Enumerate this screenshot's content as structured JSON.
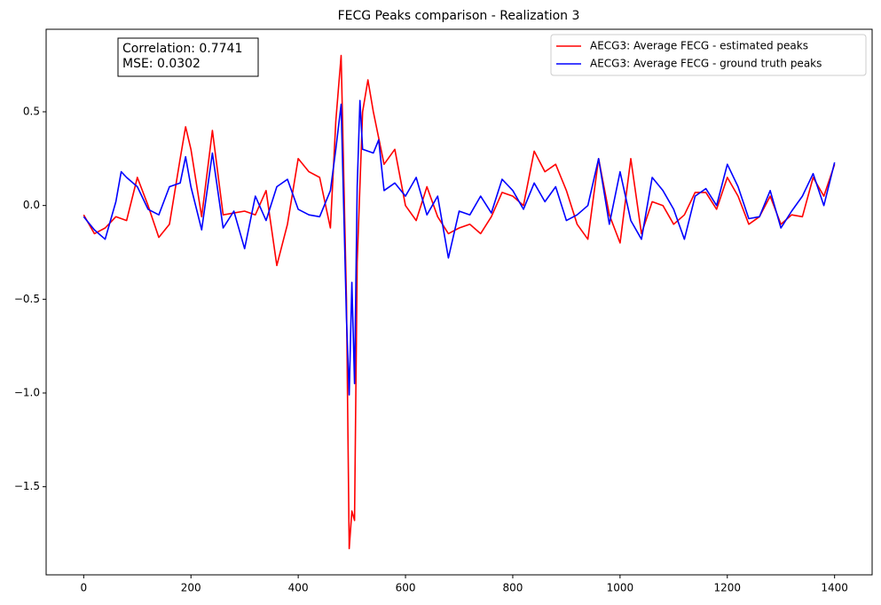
{
  "chart_data": {
    "type": "line",
    "title": "FECG Peaks comparison - Realization 3",
    "annotation": [
      "Correlation: 0.7741",
      "MSE: 0.0302"
    ],
    "legend": "upper right",
    "xlim": [
      -70,
      1470
    ],
    "xticks": [
      0,
      200,
      400,
      600,
      800,
      1000,
      1200,
      1400
    ],
    "ylim": [
      -1.97,
      0.94
    ],
    "yticks": [
      {
        "value": -1.5,
        "label": "−1.5"
      },
      {
        "value": -1.0,
        "label": "−1.0"
      },
      {
        "value": -0.5,
        "label": "−0.5"
      },
      {
        "value": 0.0,
        "label": "0.0"
      },
      0.5
    ],
    "series": [
      {
        "name": "AECG3: Average FECG - estimated peaks",
        "color": "#ff0000",
        "x": [
          0,
          20,
          40,
          60,
          80,
          100,
          120,
          140,
          160,
          180,
          190,
          200,
          220,
          240,
          260,
          280,
          300,
          320,
          340,
          360,
          380,
          400,
          420,
          440,
          460,
          470,
          480,
          490,
          495,
          500,
          505,
          510,
          520,
          530,
          540,
          560,
          580,
          600,
          620,
          640,
          660,
          680,
          700,
          720,
          740,
          760,
          780,
          800,
          820,
          840,
          860,
          880,
          900,
          920,
          940,
          960,
          980,
          1000,
          1020,
          1040,
          1060,
          1080,
          1100,
          1120,
          1140,
          1160,
          1180,
          1200,
          1220,
          1240,
          1260,
          1280,
          1300,
          1320,
          1340,
          1360,
          1380,
          1400
        ],
        "values": [
          -0.05,
          -0.15,
          -0.12,
          -0.06,
          -0.08,
          0.15,
          0.0,
          -0.17,
          -0.1,
          0.25,
          0.42,
          0.3,
          -0.06,
          0.4,
          -0.05,
          -0.04,
          -0.03,
          -0.05,
          0.08,
          -0.32,
          -0.1,
          0.25,
          0.18,
          0.15,
          -0.12,
          0.45,
          0.8,
          -0.5,
          -1.83,
          -1.63,
          -1.68,
          -0.3,
          0.5,
          0.67,
          0.5,
          0.22,
          0.3,
          0.0,
          -0.08,
          0.1,
          -0.06,
          -0.15,
          -0.12,
          -0.1,
          -0.15,
          -0.06,
          0.07,
          0.05,
          0.0,
          0.29,
          0.18,
          0.22,
          0.08,
          -0.1,
          -0.18,
          0.25,
          -0.05,
          -0.2,
          0.25,
          -0.15,
          0.02,
          0.0,
          -0.1,
          -0.05,
          0.07,
          0.07,
          -0.02,
          0.15,
          0.05,
          -0.1,
          -0.06,
          0.05,
          -0.1,
          -0.05,
          -0.06,
          0.15,
          0.05,
          0.22
        ]
      },
      {
        "name": "AECG3: Average FECG - ground truth peaks",
        "color": "#0000ff",
        "x": [
          0,
          20,
          40,
          60,
          70,
          80,
          100,
          120,
          140,
          160,
          180,
          190,
          200,
          220,
          240,
          260,
          280,
          300,
          320,
          340,
          360,
          380,
          400,
          420,
          440,
          460,
          470,
          480,
          490,
          495,
          500,
          505,
          510,
          515,
          520,
          540,
          550,
          560,
          580,
          600,
          620,
          640,
          660,
          680,
          700,
          720,
          740,
          760,
          780,
          800,
          820,
          840,
          860,
          880,
          900,
          920,
          940,
          960,
          980,
          1000,
          1020,
          1040,
          1060,
          1080,
          1100,
          1120,
          1140,
          1160,
          1180,
          1200,
          1220,
          1240,
          1260,
          1280,
          1300,
          1320,
          1340,
          1360,
          1380,
          1400
        ],
        "values": [
          -0.06,
          -0.13,
          -0.18,
          0.02,
          0.18,
          0.15,
          0.1,
          -0.02,
          -0.05,
          0.1,
          0.12,
          0.26,
          0.1,
          -0.13,
          0.28,
          -0.12,
          -0.03,
          -0.23,
          0.05,
          -0.08,
          0.1,
          0.14,
          -0.02,
          -0.05,
          -0.06,
          0.08,
          0.3,
          0.54,
          -0.6,
          -1.01,
          -0.41,
          -0.95,
          0.1,
          0.56,
          0.3,
          0.28,
          0.35,
          0.08,
          0.12,
          0.05,
          0.15,
          -0.05,
          0.05,
          -0.28,
          -0.03,
          -0.05,
          0.05,
          -0.04,
          0.14,
          0.08,
          -0.02,
          0.12,
          0.02,
          0.1,
          -0.08,
          -0.05,
          0.0,
          0.25,
          -0.1,
          0.18,
          -0.08,
          -0.18,
          0.15,
          0.08,
          -0.02,
          -0.18,
          0.05,
          0.09,
          0.0,
          0.22,
          0.1,
          -0.07,
          -0.06,
          0.08,
          -0.12,
          -0.03,
          0.05,
          0.17,
          0.0,
          0.23
        ]
      }
    ]
  }
}
